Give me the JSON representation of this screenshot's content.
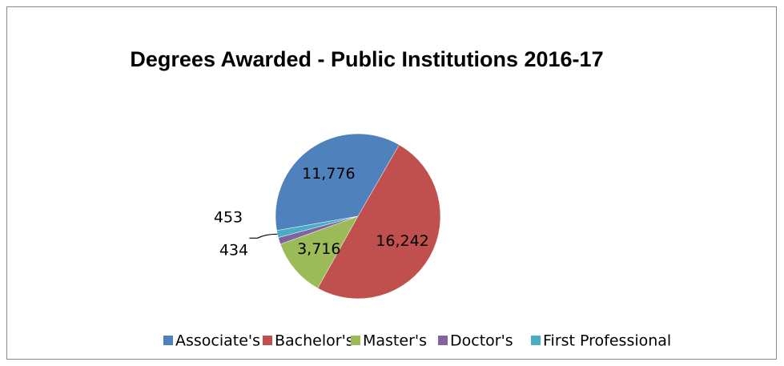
{
  "chart_data": {
    "type": "pie",
    "title": "Degrees Awarded - Public Institutions 2016-17",
    "categories": [
      "Associate's",
      "Bachelor's",
      "Master's",
      "Doctor's",
      "First Professional"
    ],
    "values": [
      11776,
      16242,
      3716,
      434,
      453
    ],
    "value_labels": [
      "11,776",
      "16,242",
      "3,716",
      "434",
      "453"
    ],
    "colors": [
      "#4f81bd",
      "#c0504d",
      "#9bbb59",
      "#8064a2",
      "#4bacc6"
    ],
    "legend": "bottom"
  }
}
